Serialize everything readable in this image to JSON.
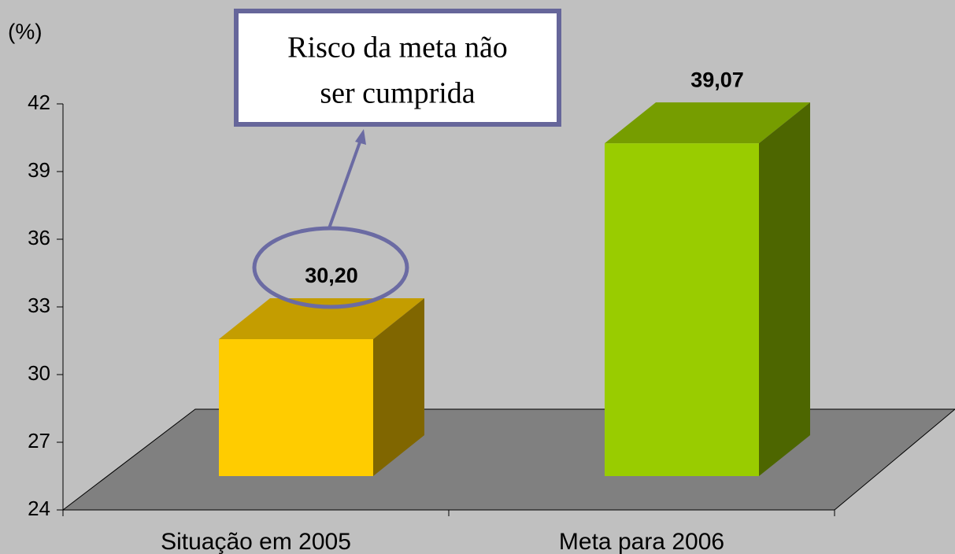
{
  "chart_data": {
    "type": "bar",
    "y_label": "(%)",
    "annotation": [
      "Risco da meta não",
      "ser cumprida"
    ],
    "categories": [
      "Situação em 2005",
      "Meta para 2006"
    ],
    "values": [
      30.2,
      39.07
    ],
    "value_labels": [
      "30,20",
      "39,07"
    ],
    "colors": [
      "#ffcc00",
      "#99cc00"
    ],
    "ylim": [
      24,
      42
    ],
    "yticks": [
      24,
      27,
      30,
      33,
      36,
      39,
      42
    ]
  }
}
